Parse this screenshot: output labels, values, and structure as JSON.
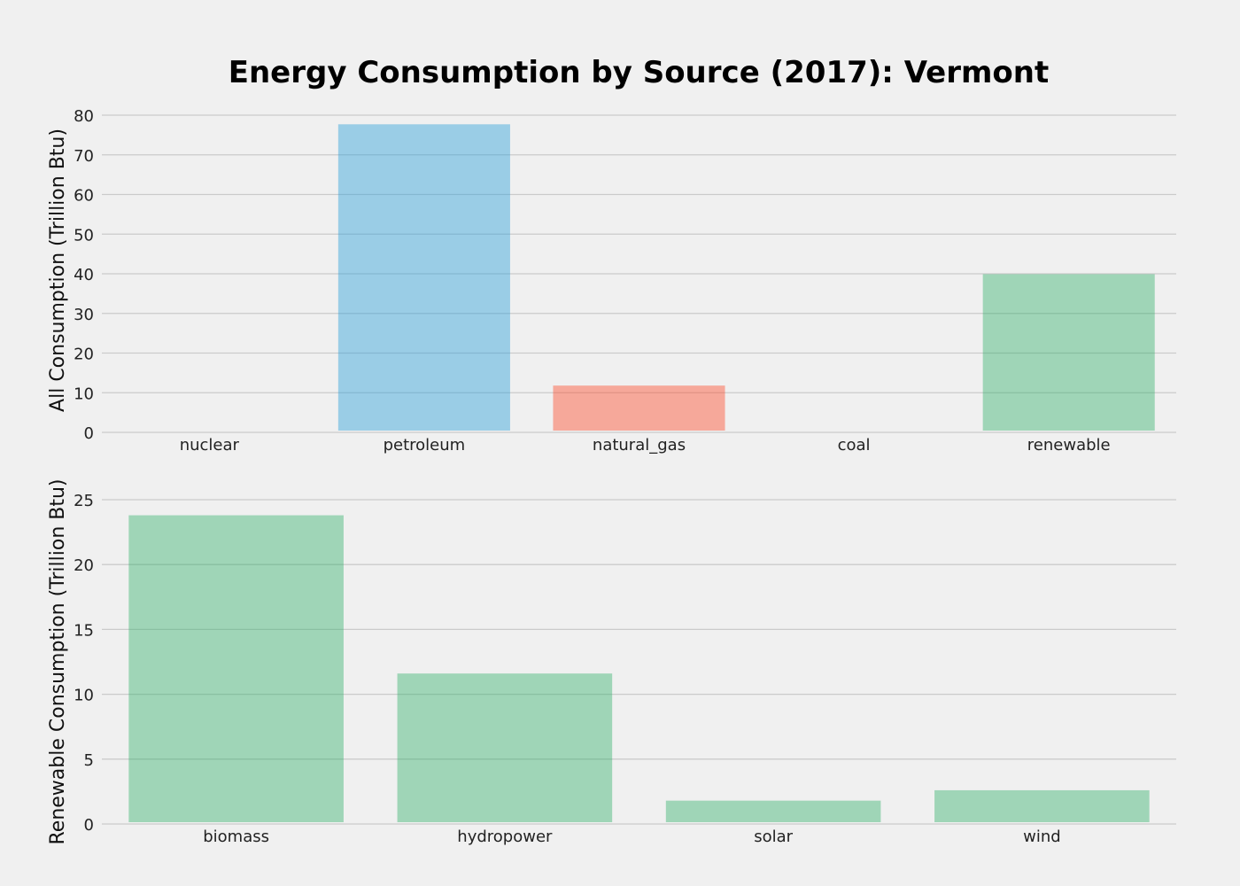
{
  "chart_data": [
    {
      "type": "bar",
      "title": "Energy Consumption by Source (2017): Vermont",
      "ylabel": "All Consumption (Trillion Btu)",
      "categories": [
        "nuclear",
        "petroleum",
        "natural_gas",
        "coal",
        "renewable"
      ],
      "values": [
        0,
        77.7,
        11.8,
        0,
        39.9
      ],
      "colors": [
        "#30a2da",
        "#30a2da",
        "#fc4f30",
        "#30a2da",
        "#3cb371"
      ],
      "yticks": [
        "0",
        "10",
        "20",
        "30",
        "40",
        "50",
        "60",
        "70",
        "80"
      ],
      "ylim": [
        0,
        80
      ],
      "grid": true
    },
    {
      "type": "bar",
      "ylabel": "Renewable Consumption (Trillion Btu)",
      "categories": [
        "biomass",
        "hydropower",
        "solar",
        "wind"
      ],
      "values": [
        23.8,
        11.6,
        1.8,
        2.6
      ],
      "colors": [
        "#3cb371",
        "#3cb371",
        "#3cb371",
        "#3cb371"
      ],
      "yticks": [
        "0",
        "5",
        "10",
        "15",
        "20",
        "25"
      ],
      "ylim": [
        0,
        25
      ],
      "grid": true
    }
  ]
}
